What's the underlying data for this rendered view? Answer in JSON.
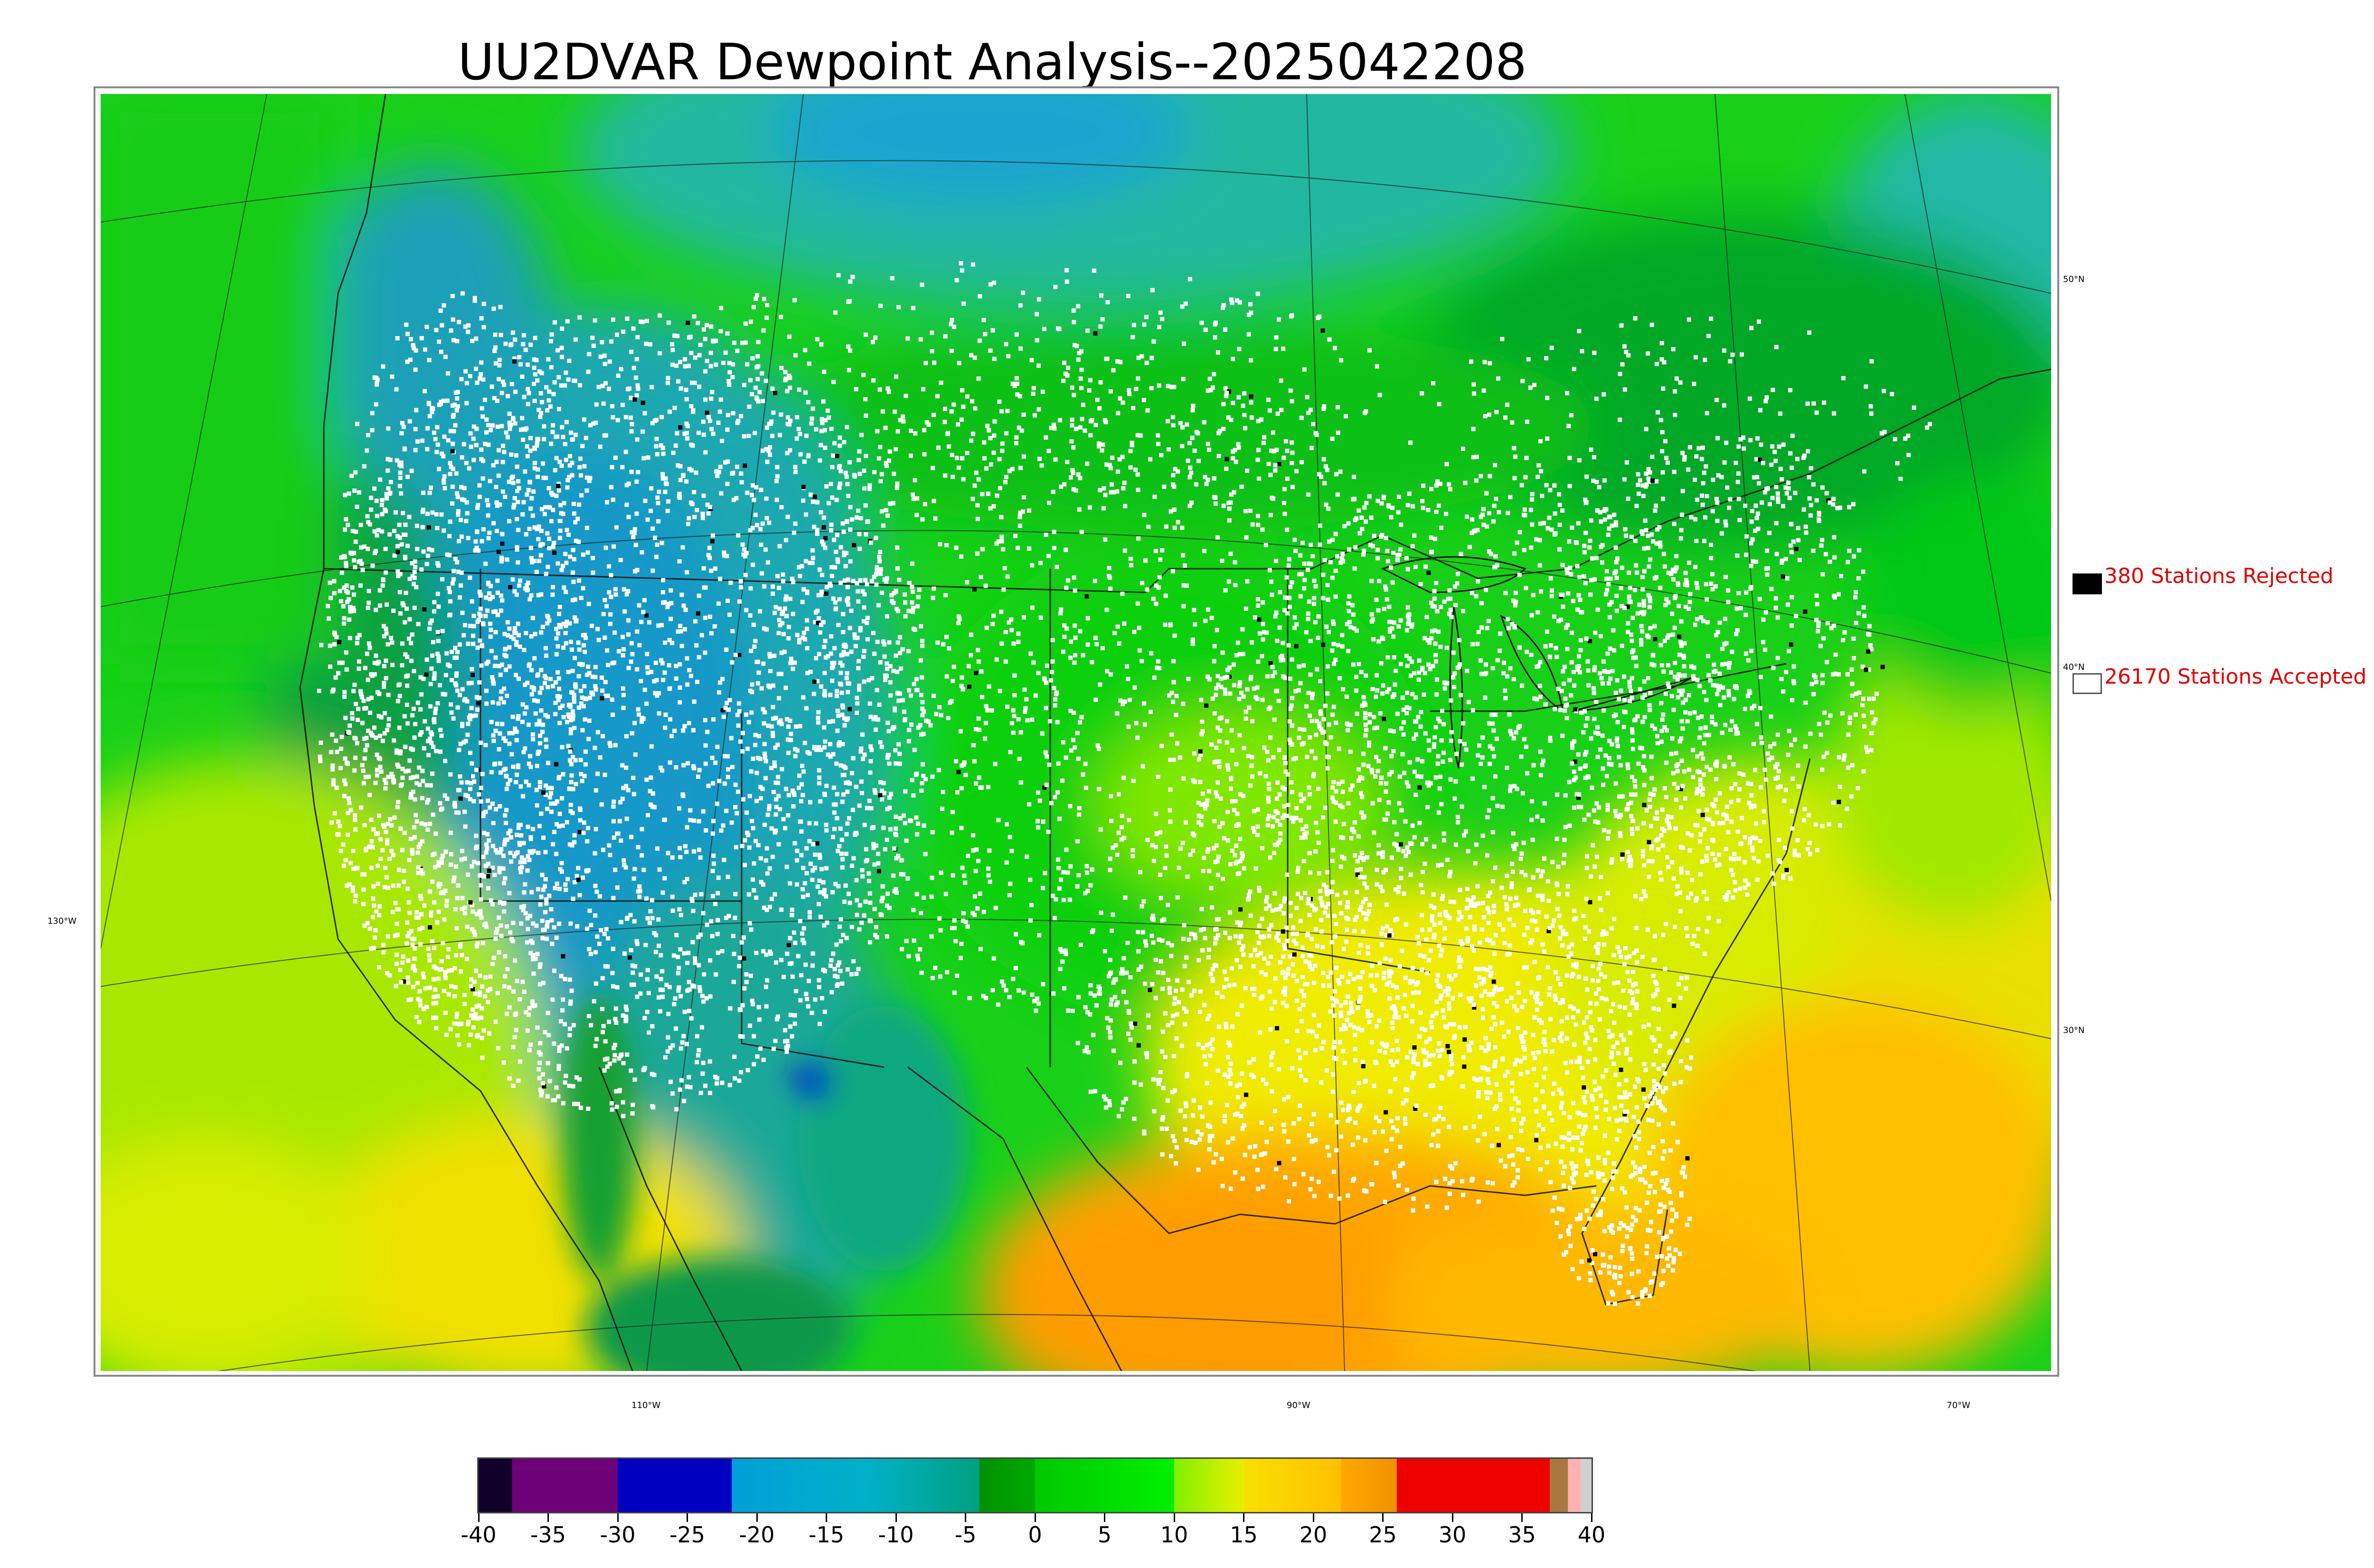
{
  "title": "UU2DVAR Dewpoint Analysis--2025042208",
  "legend": {
    "rejected": {
      "label": "380 Stations Rejected",
      "color": "#000000"
    },
    "accepted": {
      "label": "26170 Stations Accepted",
      "color": "#ffffff"
    }
  },
  "graticule": {
    "lat_labels": [
      "50°N",
      "40°N",
      "30°N"
    ],
    "lon_labels": [
      "130°W",
      "110°W",
      "90°W",
      "70°W"
    ]
  },
  "colorbar": {
    "min": -40,
    "max": 40,
    "tick_labels": [
      "-40",
      "-35",
      "-30",
      "-25",
      "-20",
      "-15",
      "-10",
      "-5",
      "0",
      "5",
      "10",
      "15",
      "20",
      "25",
      "30",
      "35",
      "40"
    ],
    "segments": [
      {
        "from": -40,
        "to": -37.6,
        "color": "#10002a"
      },
      {
        "from": -37.6,
        "to": -30,
        "color": "#6e0078"
      },
      {
        "from": -30,
        "to": -21.8,
        "color": "#0000c0"
      },
      {
        "from": -21.8,
        "to": -12,
        "gradient": [
          "#00a0d8",
          "#00b0c8"
        ]
      },
      {
        "from": -12,
        "to": -4,
        "gradient": [
          "#00b0c8",
          "#00a080"
        ]
      },
      {
        "from": -4,
        "to": 0,
        "gradient": [
          "#009000",
          "#00a800"
        ]
      },
      {
        "from": 0,
        "to": 10,
        "gradient": [
          "#00c800",
          "#00f000"
        ]
      },
      {
        "from": 10,
        "to": 15,
        "gradient": [
          "#80f000",
          "#e8f000"
        ]
      },
      {
        "from": 15,
        "to": 22,
        "gradient": [
          "#f8e000",
          "#ffc000"
        ]
      },
      {
        "from": 22,
        "to": 26,
        "gradient": [
          "#ffa800",
          "#f09000"
        ]
      },
      {
        "from": 26,
        "to": 37,
        "color": "#ee0000"
      },
      {
        "from": 37,
        "to": 38.3,
        "color": "#a87840"
      },
      {
        "from": 38.3,
        "to": 39.2,
        "color": "#ffb0b0"
      },
      {
        "from": 39.2,
        "to": 40,
        "color": "#d0d0d0"
      }
    ]
  }
}
